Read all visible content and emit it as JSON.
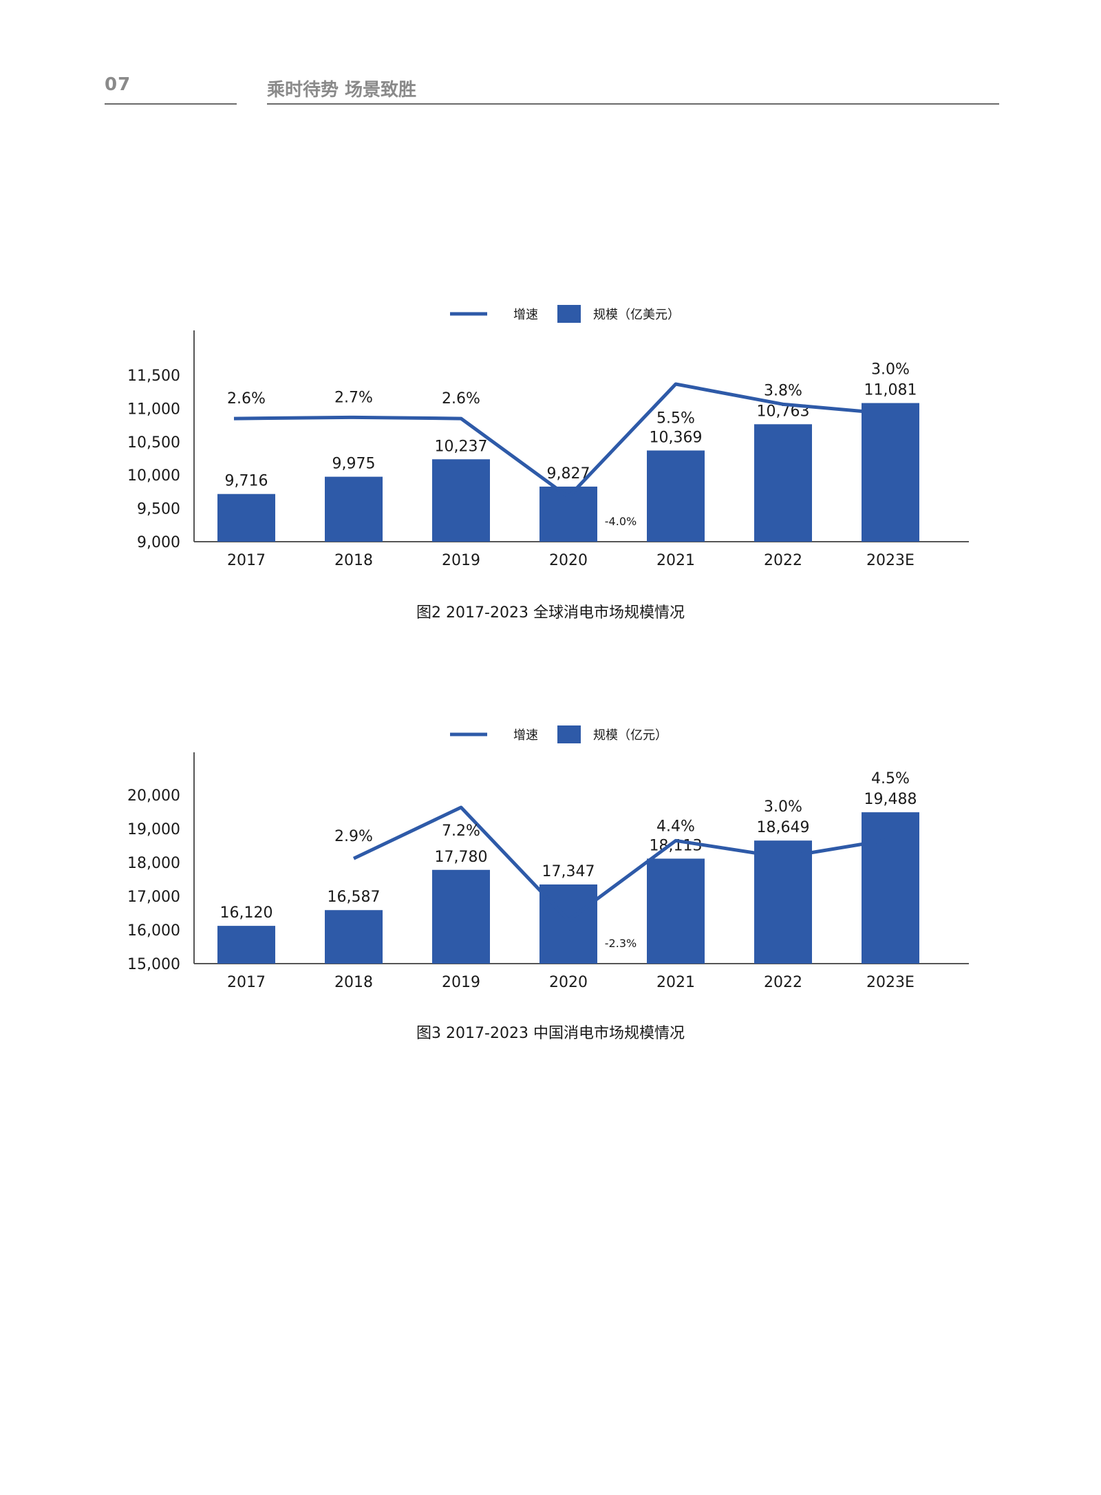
{
  "header": {
    "page_number": "07",
    "title": "乘时待势 场景致胜"
  },
  "colors": {
    "series": "#2e5aa8",
    "axis": "#555555",
    "header_text": "#8a8a8a"
  },
  "chart_data": [
    {
      "type": "bar",
      "caption": "图2 2017-2023 全球消电市场规模情况",
      "categories": [
        "2017",
        "2018",
        "2019",
        "2020",
        "2021",
        "2022",
        "2023E"
      ],
      "legend": {
        "placement": "top-center",
        "line_label": "增速",
        "bar_label": "规模（亿美元）"
      },
      "ylim": [
        9000,
        11500
      ],
      "yticks": [
        "9,000",
        "9,500",
        "10,000",
        "10,500",
        "11,000",
        "11,500"
      ],
      "series": [
        {
          "name": "规模（亿美元）",
          "type": "bar",
          "values": [
            9716,
            9975,
            10237,
            9827,
            10369,
            10763,
            11081
          ],
          "labels": [
            "9,716",
            "9,975",
            "10,237",
            "9,827",
            "10,369",
            "10,763",
            "11,081"
          ]
        },
        {
          "name": "增速",
          "type": "line",
          "values": [
            2.6,
            2.7,
            2.6,
            -4.0,
            5.5,
            3.8,
            3.0
          ],
          "labels": [
            "2.6%",
            "2.7%",
            "2.6%",
            "-4.0%",
            "5.5%",
            "3.8%",
            "3.0%"
          ]
        }
      ],
      "grid": false
    },
    {
      "type": "bar",
      "caption": "图3 2017-2023 中国消电市场规模情况",
      "categories": [
        "2017",
        "2018",
        "2019",
        "2020",
        "2021",
        "2022",
        "2023E"
      ],
      "legend": {
        "placement": "top-center",
        "line_label": "增速",
        "bar_label": "规模（亿元）"
      },
      "ylim": [
        15000,
        20000
      ],
      "yticks": [
        "15,000",
        "16,000",
        "17,000",
        "18,000",
        "19,000",
        "20,000"
      ],
      "series": [
        {
          "name": "规模（亿元）",
          "type": "bar",
          "values": [
            16120,
            16587,
            17780,
            17347,
            18113,
            18649,
            19488
          ],
          "labels": [
            "16,120",
            "16,587",
            "17,780",
            "17,347",
            "18,113",
            "18,649",
            "19,488"
          ]
        },
        {
          "name": "增速",
          "type": "line",
          "values": [
            null,
            2.9,
            7.2,
            -2.3,
            4.4,
            3.0,
            4.5
          ],
          "labels": [
            "",
            "2.9%",
            "7.2%",
            "-2.3%",
            "4.4%",
            "3.0%",
            "4.5%"
          ]
        }
      ],
      "grid": false
    }
  ]
}
